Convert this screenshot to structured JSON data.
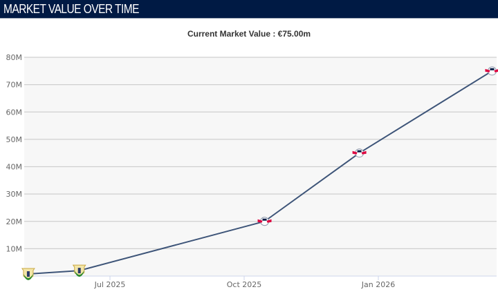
{
  "header": {
    "title": "MARKET VALUE OVER TIME"
  },
  "subtitle": "Current Market Value : €75.00m",
  "chart_data": {
    "type": "line",
    "title": "",
    "xlabel": "",
    "ylabel": "",
    "x_ticks": [
      "Jul 2025",
      "Oct 2025",
      "Jan 2026"
    ],
    "y_ticks": [
      "10M",
      "20M",
      "30M",
      "40M",
      "50M",
      "60M",
      "70M",
      "80M"
    ],
    "ylim": [
      0,
      80
    ],
    "y_unit": "M €",
    "grid": true,
    "line_color": "#3d5478",
    "points": [
      {
        "date": "2025-05-06",
        "value": 0.75,
        "club_marker": "leganes-crest-icon"
      },
      {
        "date": "2025-06-10",
        "value": 2,
        "club_marker": "leganes-crest-icon"
      },
      {
        "date": "2025-10-15",
        "value": 20,
        "club_marker": "rb-leipzig-crest-icon"
      },
      {
        "date": "2025-12-19",
        "value": 45,
        "club_marker": "rb-leipzig-crest-icon"
      },
      {
        "date": "2026-03-20",
        "value": 75,
        "club_marker": "rb-leipzig-crest-icon"
      }
    ]
  }
}
